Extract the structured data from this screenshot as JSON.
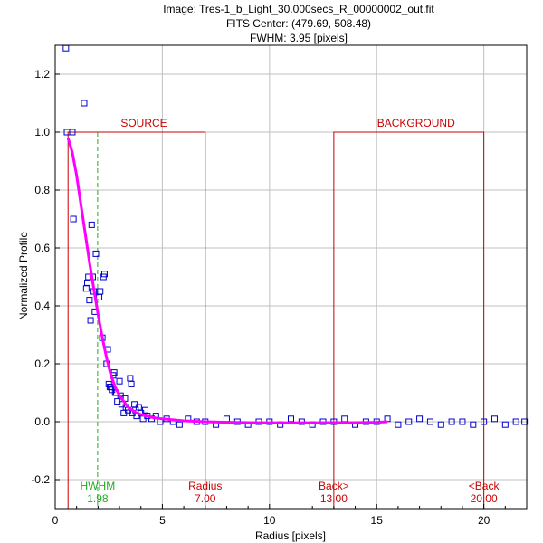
{
  "chart_data": {
    "type": "scatter",
    "title_lines": [
      "Image: Tres-1_b_Light_30.000secs_R_00000002_out.fit",
      "FITS Center: (479.69,  508.48)",
      "FWHM: 3.95 [pixels]"
    ],
    "xlabel": "Radius [pixels]",
    "ylabel": "Normalized Profile",
    "xlim": [
      0,
      22
    ],
    "ylim": [
      -0.3,
      1.3
    ],
    "xticks": [
      0,
      5,
      10,
      15,
      20
    ],
    "yticks": [
      -0.2,
      0.0,
      0.2,
      0.4,
      0.6,
      0.8,
      1.0,
      1.2
    ],
    "grid": true,
    "colors": {
      "points": "#0000cc",
      "fit": "#ff00ff",
      "regions": "#cc0000",
      "fwhm": "#22aa22",
      "grid": "#c0c0c0"
    },
    "regions": {
      "source_label": "SOURCE",
      "background_label": "BACKGROUND",
      "level": 1.0,
      "source_x": [
        0.6,
        7.0
      ],
      "background_x": [
        13.0,
        20.0
      ]
    },
    "markers": [
      {
        "name": "HWHM",
        "value": "1.98",
        "x": 1.98,
        "color": "#22aa22"
      },
      {
        "name": "Radius",
        "value": "7.00",
        "x": 7.0,
        "color": "#cc0000"
      },
      {
        "name": "Back>",
        "value": "13.00",
        "x": 13.0,
        "color": "#cc0000"
      },
      {
        "name": "<Back",
        "value": "20.00",
        "x": 20.0,
        "color": "#cc0000"
      }
    ],
    "series": [
      {
        "type": "scatter",
        "x": [
          0.5,
          0.55,
          0.8,
          0.85,
          1.35,
          1.45,
          1.5,
          1.55,
          1.6,
          1.65,
          1.7,
          1.75,
          1.8,
          1.85,
          1.9,
          2.05,
          2.1,
          2.2,
          2.25,
          2.3,
          2.4,
          2.45,
          2.5,
          2.55,
          2.6,
          2.65,
          2.7,
          2.75,
          2.8,
          2.85,
          2.9,
          3.0,
          3.05,
          3.1,
          3.2,
          3.25,
          3.3,
          3.4,
          3.5,
          3.55,
          3.6,
          3.7,
          3.75,
          3.8,
          3.9,
          4.0,
          4.1,
          4.2,
          4.3,
          4.5,
          4.7,
          4.9,
          5.2,
          5.5,
          5.8,
          6.2,
          6.6,
          7.0,
          7.5,
          8.0,
          8.5,
          9.0,
          9.5,
          10.0,
          10.5,
          11.0,
          11.5,
          12.0,
          12.5,
          13.0,
          13.5,
          14.0,
          14.5,
          15.0,
          15.5,
          16.0,
          16.5,
          17.0,
          17.5,
          18.0,
          18.5,
          19.0,
          19.5,
          20.0,
          20.5,
          21.0,
          21.5,
          21.9
        ],
        "y": [
          1.29,
          1.0,
          1.0,
          0.7,
          1.1,
          0.46,
          0.48,
          0.5,
          0.42,
          0.35,
          0.68,
          0.5,
          0.45,
          0.38,
          0.58,
          0.43,
          0.45,
          0.29,
          0.5,
          0.51,
          0.2,
          0.25,
          0.13,
          0.12,
          0.12,
          0.11,
          0.16,
          0.17,
          0.1,
          0.1,
          0.07,
          0.14,
          0.09,
          0.06,
          0.03,
          0.08,
          0.05,
          0.04,
          0.15,
          0.13,
          0.03,
          0.06,
          0.04,
          0.02,
          0.05,
          0.03,
          0.01,
          0.04,
          0.02,
          0.01,
          0.02,
          0.0,
          0.01,
          0.0,
          -0.01,
          0.01,
          0.0,
          0.0,
          -0.01,
          0.01,
          0.0,
          -0.01,
          0.0,
          0.0,
          -0.01,
          0.01,
          0.0,
          -0.01,
          0.0,
          0.0,
          0.01,
          -0.01,
          0.0,
          0.0,
          0.01,
          -0.01,
          0.0,
          0.01,
          0.0,
          -0.01,
          0.0,
          0.0,
          -0.01,
          0.0,
          0.01,
          -0.01,
          0.0,
          0.0
        ]
      },
      {
        "type": "line",
        "x": [
          0.6,
          0.8,
          1.0,
          1.2,
          1.4,
          1.6,
          1.8,
          2.0,
          2.2,
          2.4,
          2.6,
          2.8,
          3.0,
          3.2,
          3.4,
          3.6,
          3.8,
          4.0,
          4.5,
          5.0,
          6.0,
          7.0,
          8.0,
          9.0,
          10.0,
          11.0,
          12.0,
          13.0,
          14.0,
          15.0,
          15.5
        ],
        "y": [
          0.98,
          0.93,
          0.85,
          0.75,
          0.65,
          0.55,
          0.46,
          0.37,
          0.29,
          0.22,
          0.16,
          0.12,
          0.09,
          0.07,
          0.05,
          0.04,
          0.03,
          0.025,
          0.015,
          0.01,
          0.003,
          0.0,
          -0.002,
          -0.003,
          -0.004,
          -0.004,
          -0.004,
          -0.003,
          -0.003,
          -0.002,
          0.0
        ]
      }
    ]
  }
}
